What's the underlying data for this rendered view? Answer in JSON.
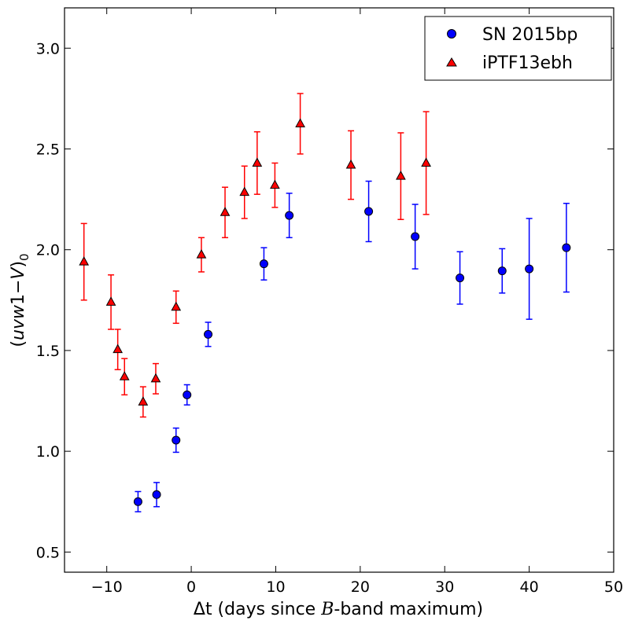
{
  "chart_data": {
    "type": "scatter",
    "title": "",
    "xlabel": "Δt (days since B-band maximum)",
    "ylabel": "(uvw1−V)₀",
    "xlim": [
      -15,
      50
    ],
    "ylim": [
      0.4,
      3.2
    ],
    "xticks": [
      -10,
      0,
      10,
      20,
      30,
      40,
      50
    ],
    "xtick_labels": [
      "−10",
      "0",
      "10",
      "20",
      "30",
      "40",
      "50"
    ],
    "yticks": [
      0.5,
      1.0,
      1.5,
      2.0,
      2.5,
      3.0
    ],
    "ytick_labels": [
      "0.5",
      "1.0",
      "1.5",
      "2.0",
      "2.5",
      "3.0"
    ],
    "grid": false,
    "legend_position": "top-right",
    "series": [
      {
        "name": "SN 2015bp",
        "marker": "circle",
        "color": "#0000ff",
        "x": [
          -6.3,
          -4.1,
          -1.8,
          -0.5,
          2.0,
          8.6,
          11.6,
          21.0,
          26.5,
          31.8,
          36.8,
          40.0,
          44.4
        ],
        "y": [
          0.75,
          0.785,
          1.055,
          1.28,
          1.58,
          1.93,
          2.17,
          2.19,
          2.065,
          1.86,
          1.895,
          1.905,
          2.01
        ],
        "err": [
          0.05,
          0.06,
          0.06,
          0.05,
          0.06,
          0.08,
          0.11,
          0.15,
          0.16,
          0.13,
          0.11,
          0.25,
          0.22
        ]
      },
      {
        "name": "iPTF13ebh",
        "marker": "triangle",
        "color": "#ff0000",
        "x": [
          -12.7,
          -9.5,
          -8.7,
          -7.9,
          -5.7,
          -4.2,
          -1.8,
          1.2,
          4.0,
          6.3,
          7.8,
          9.9,
          12.9,
          18.9,
          24.8,
          27.8
        ],
        "y": [
          1.94,
          1.74,
          1.505,
          1.37,
          1.245,
          1.36,
          1.715,
          1.975,
          2.185,
          2.285,
          2.43,
          2.32,
          2.625,
          2.42,
          2.365,
          2.43
        ],
        "err": [
          0.19,
          0.135,
          0.1,
          0.09,
          0.075,
          0.075,
          0.08,
          0.085,
          0.125,
          0.13,
          0.155,
          0.11,
          0.15,
          0.17,
          0.215,
          0.255
        ]
      }
    ]
  },
  "legend": {
    "series_1_label": "SN 2015bp",
    "series_2_label": "iPTF13ebh"
  },
  "axes": {
    "xlabel_prefix": "Δt (days since ",
    "xlabel_B": "B",
    "xlabel_suffix": "-band maximum)",
    "ylabel_open": "(",
    "ylabel_uvw": "uvw",
    "ylabel_one": "1",
    "ylabel_minus": "−",
    "ylabel_V": "V",
    "ylabel_close": ")",
    "ylabel_sub": "0"
  }
}
